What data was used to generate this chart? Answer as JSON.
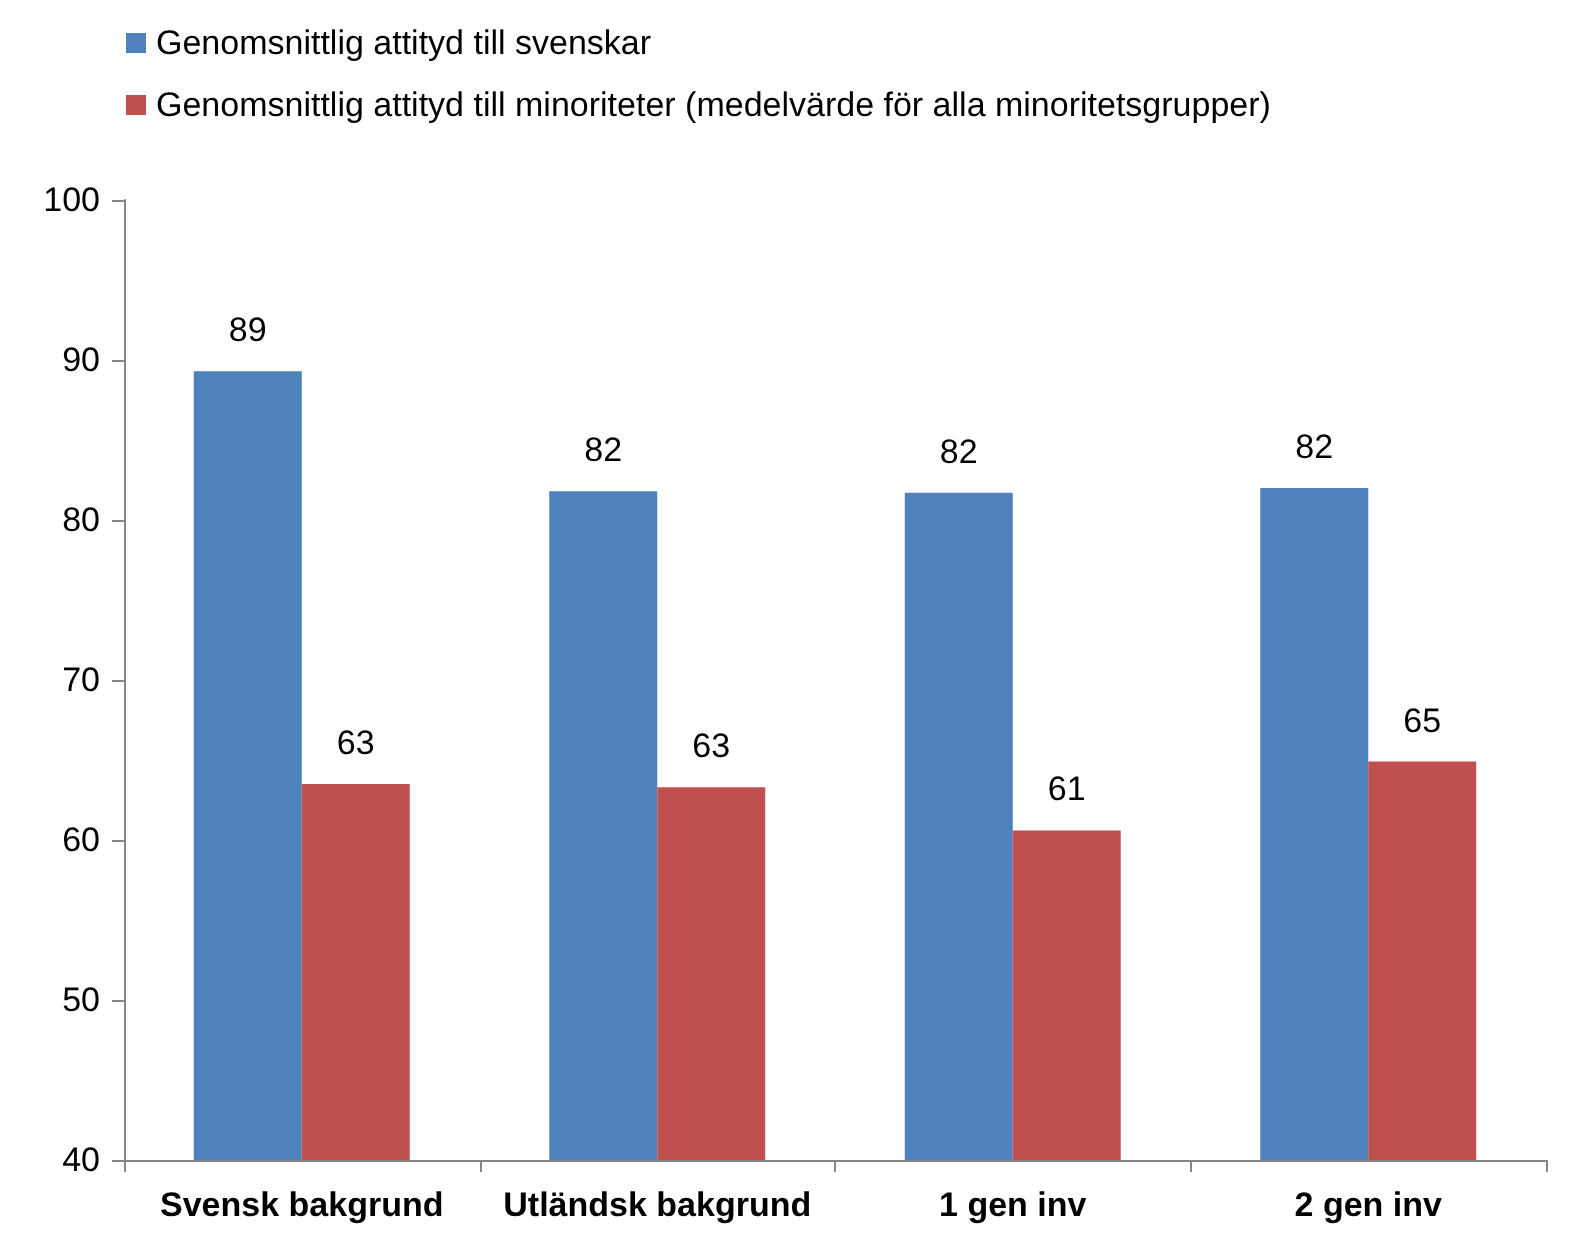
{
  "chart_data": {
    "type": "bar",
    "categories": [
      "Svensk bakgrund",
      "Utländsk bakgrund",
      "1 gen inv",
      "2 gen inv"
    ],
    "series": [
      {
        "name": "Genomsnittlig attityd till svenskar",
        "color": "#4f81bd",
        "values": [
          89.3,
          81.8,
          81.7,
          82.0
        ],
        "value_labels": [
          "89",
          "82",
          "82",
          "82"
        ]
      },
      {
        "name": "Genomsnittlig attityd till minoriteter (medelvärde för alla minoritetsgrupper)",
        "color": "#c0504d",
        "values": [
          63.5,
          63.3,
          60.6,
          64.9
        ],
        "value_labels": [
          "63",
          "63",
          "61",
          "65"
        ]
      }
    ],
    "ylim": [
      40,
      100
    ],
    "yticks": [
      40,
      50,
      60,
      70,
      80,
      90,
      100
    ],
    "grid": false,
    "legend": "top left"
  }
}
